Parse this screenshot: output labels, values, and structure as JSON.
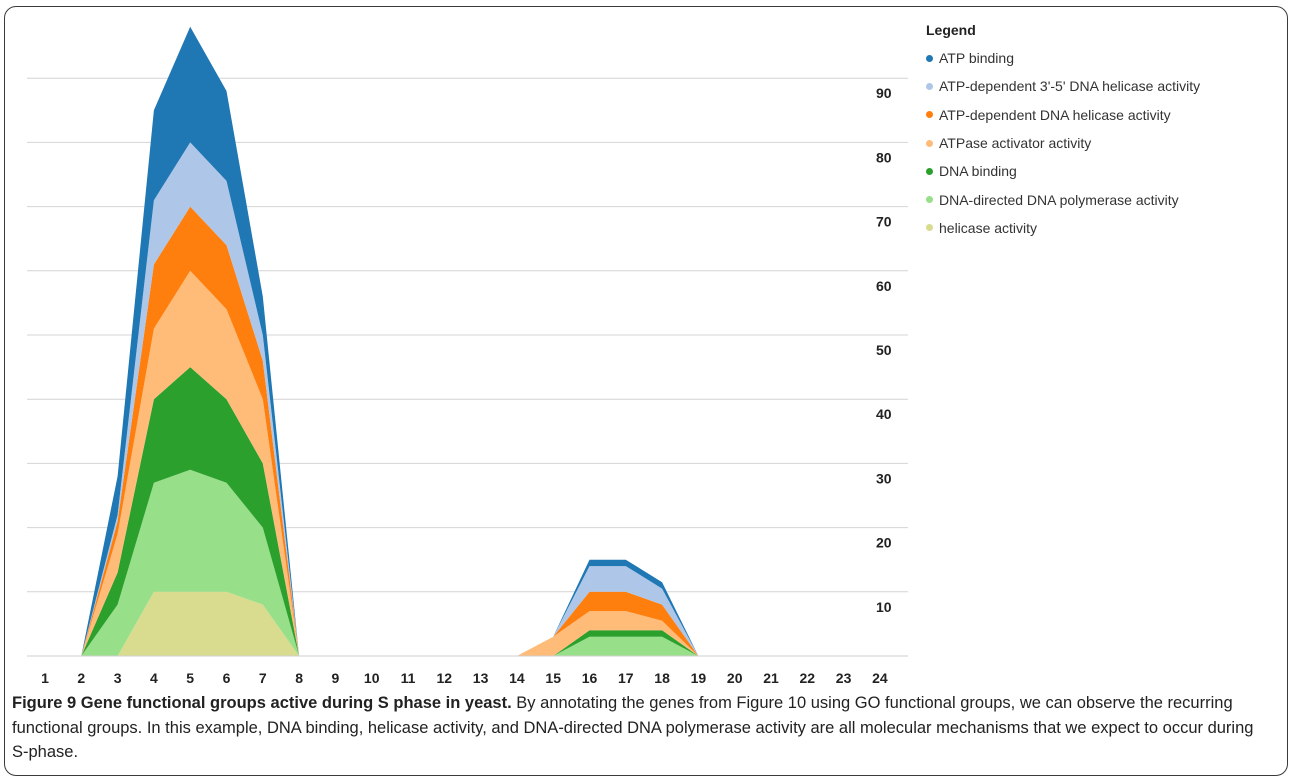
{
  "chart_data": {
    "type": "area",
    "stacked": true,
    "x": [
      1,
      2,
      3,
      4,
      5,
      6,
      7,
      8,
      9,
      10,
      11,
      12,
      13,
      14,
      15,
      16,
      17,
      18,
      19,
      20,
      21,
      22,
      23,
      24
    ],
    "y_ticks": [
      10,
      20,
      30,
      40,
      50,
      60,
      70,
      80,
      90
    ],
    "ylim": [
      0,
      100
    ],
    "y_axis_side": "right",
    "grid": true,
    "legend_title": "Legend",
    "legend_position": "top-right",
    "series": [
      {
        "name": "helicase activity",
        "color": "#d9dc8f",
        "values": [
          0,
          0,
          0,
          10,
          10,
          10,
          8,
          0,
          0,
          0,
          0,
          0,
          0,
          0,
          0,
          0,
          0,
          0,
          0,
          0,
          0,
          0,
          0,
          0
        ]
      },
      {
        "name": "DNA-directed DNA polymerase activity",
        "color": "#98df8a",
        "values": [
          0,
          0,
          8,
          17,
          19,
          17,
          12,
          0,
          0,
          0,
          0,
          0,
          0,
          0,
          0,
          3,
          3,
          3,
          0,
          0,
          0,
          0,
          0,
          0
        ]
      },
      {
        "name": "DNA binding",
        "color": "#2ca02c",
        "values": [
          0,
          0,
          5,
          13,
          16,
          13,
          10,
          0,
          0,
          0,
          0,
          0,
          0,
          0,
          0,
          1,
          1,
          1,
          0,
          0,
          0,
          0,
          0,
          0
        ]
      },
      {
        "name": "ATPase activator activity",
        "color": "#ffbb78",
        "values": [
          0,
          0,
          6,
          11,
          15,
          14,
          10,
          0,
          0,
          0,
          0,
          0,
          0,
          0,
          3,
          3,
          3,
          1.5,
          0,
          0,
          0,
          0,
          0,
          0
        ]
      },
      {
        "name": "ATP-dependent DNA helicase activity",
        "color": "#ff7f0e",
        "values": [
          0,
          0,
          2,
          10,
          10,
          10,
          6,
          0,
          0,
          0,
          0,
          0,
          0,
          0,
          0,
          3,
          3,
          2.5,
          0,
          0,
          0,
          0,
          0,
          0
        ]
      },
      {
        "name": "ATP-dependent 3'-5' DNA helicase activity",
        "color": "#aec7e8",
        "values": [
          0,
          0,
          1,
          10,
          10,
          10,
          4,
          0,
          0,
          0,
          0,
          0,
          0,
          0,
          0,
          4,
          4,
          2.5,
          0,
          0,
          0,
          0,
          0,
          0
        ]
      },
      {
        "name": "ATP binding",
        "color": "#1f77b4",
        "values": [
          0,
          0,
          6,
          14,
          18,
          14,
          6,
          0,
          0,
          0,
          0,
          0,
          0,
          0,
          0,
          1,
          1,
          1,
          0,
          0,
          0,
          0,
          0,
          0
        ]
      }
    ]
  },
  "legend": {
    "title": "Legend",
    "items": [
      {
        "label": "ATP binding",
        "color": "#1f77b4"
      },
      {
        "label": "ATP-dependent 3'-5' DNA helicase activity",
        "color": "#aec7e8"
      },
      {
        "label": "ATP-dependent DNA helicase activity",
        "color": "#ff7f0e"
      },
      {
        "label": "ATPase activator activity",
        "color": "#ffbb78"
      },
      {
        "label": "DNA binding",
        "color": "#2ca02c"
      },
      {
        "label": "DNA-directed DNA polymerase activity",
        "color": "#98df8a"
      },
      {
        "label": "helicase activity",
        "color": "#d9dc8f"
      }
    ]
  },
  "caption": {
    "label": "Figure 9 Gene functional groups active during S phase in yeast.",
    "text": "By annotating the genes from Figure 10 using GO functional groups, we can observe the recurring functional groups. In this example, DNA binding, helicase activity, and DNA-directed DNA polymerase activity are all molecular mechanisms that we expect to occur during S-phase."
  }
}
